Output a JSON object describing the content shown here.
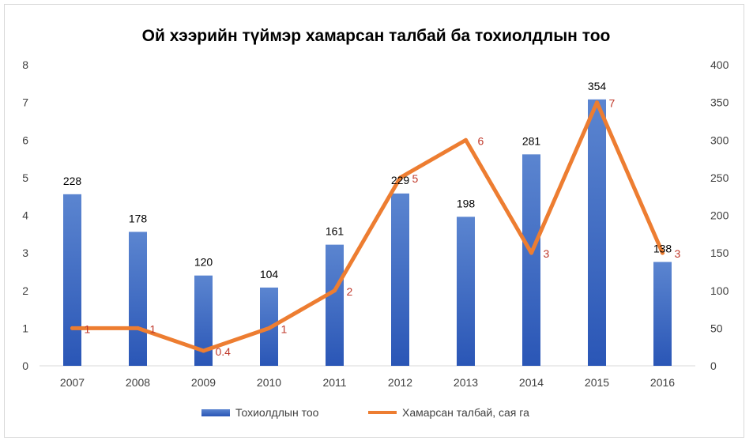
{
  "chart_data": {
    "title": "Ой хээрийн түймэр хамарсан талбай ба тохиолдлын тоо",
    "categories": [
      "2007",
      "2008",
      "2009",
      "2010",
      "2011",
      "2012",
      "2013",
      "2014",
      "2015",
      "2016"
    ],
    "series": [
      {
        "name": "Тохиолдлын  тоо",
        "type": "bar",
        "axis": "right",
        "values": [
          228,
          178,
          120,
          104,
          161,
          229,
          198,
          281,
          354,
          138
        ],
        "labels": [
          "228",
          "178",
          "120",
          "104",
          "161",
          "229",
          "198",
          "281",
          "354",
          "138"
        ],
        "color": "#4472c4"
      },
      {
        "name": "Хамарсан  талбай,  сая га",
        "type": "line",
        "axis": "left",
        "values": [
          1,
          1,
          0.4,
          1,
          2,
          5,
          6,
          3,
          7,
          3
        ],
        "labels": [
          "1",
          "1",
          "0.4",
          "1",
          "2",
          "5",
          "6",
          "3",
          "7",
          "3"
        ],
        "color": "#ed7d31"
      }
    ],
    "left_axis": {
      "min": 0,
      "max": 8,
      "ticks": [
        "0",
        "1",
        "2",
        "3",
        "4",
        "5",
        "6",
        "7",
        "8"
      ]
    },
    "right_axis": {
      "min": 0,
      "max": 400,
      "ticks": [
        "0",
        "50",
        "100",
        "150",
        "200",
        "250",
        "300",
        "350",
        "400"
      ]
    },
    "legend_position": "bottom",
    "grid": false
  }
}
